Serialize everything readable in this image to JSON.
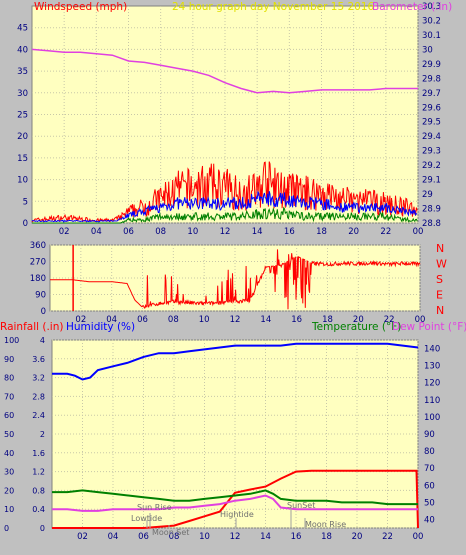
{
  "title": "24 hour graph day   November 15 2016",
  "colors": {
    "plot_bg": "#ffffc0",
    "frame_bg": "#c0c0c0",
    "grid": "#c8c8a8",
    "wind": "#ff0000",
    "gust_avg": "#0000ff",
    "wind_min": "#008000",
    "barometer": "#e040e0",
    "direction": "#ff0000",
    "rain": "#ff0000",
    "humidity": "#0000ff",
    "temperature": "#008000",
    "dewpoint": "#e040e0",
    "title": "#e0e000"
  },
  "x_tick_labels": [
    "02",
    "04",
    "06",
    "08",
    "10",
    "12",
    "14",
    "16",
    "18",
    "20",
    "22",
    "00"
  ],
  "panel1": {
    "left_label": "Windspeed (mph)",
    "right_label": "Barometer (.in)",
    "left_ticks": [
      "0",
      "5",
      "10",
      "15",
      "20",
      "25",
      "30",
      "35",
      "40",
      "45"
    ],
    "right_ticks": [
      "28.8",
      "28.9",
      "29",
      "29.1",
      "29.2",
      "29.3",
      "29.4",
      "29.5",
      "29.6",
      "29.7",
      "29.8",
      "29.9",
      "30",
      "30.1",
      "30.2",
      "30.3"
    ]
  },
  "panel2": {
    "left_ticks": [
      "0",
      "90",
      "180",
      "270",
      "360"
    ],
    "right_letters": [
      "N",
      "W",
      "S",
      "E",
      "N"
    ]
  },
  "panel3": {
    "rain_label": "Rainfall (.in)",
    "humidity_label": "Humidity (%)",
    "temp_label": "Temperature (°F)",
    "dew_label": "Dew Point (°F)",
    "humidity_ticks": [
      "0",
      "10",
      "20",
      "30",
      "40",
      "50",
      "60",
      "70",
      "80",
      "90",
      "100"
    ],
    "rain_ticks": [
      "0",
      "0.4",
      "0.8",
      "1.2",
      "1.6",
      "2",
      "2.4",
      "2.8",
      "3.2",
      "3.6",
      "4"
    ],
    "temp_ticks": [
      "40",
      "50",
      "60",
      "70",
      "80",
      "90",
      "100",
      "110",
      "120",
      "130",
      "140"
    ],
    "annotations": {
      "sunrise": "Sun Rise",
      "lowtide": "Lowtide",
      "moonset": "Moon Set",
      "hightide": "Hightide",
      "sunset": "SunSet",
      "moonrise": "Moon Rise"
    }
  },
  "chart_data": [
    {
      "type": "line",
      "title": "24 hour graph day   November 15 2016",
      "ylabel": "Windspeed (mph)",
      "y2label": "Barometer (.in)",
      "xlim": [
        0,
        24
      ],
      "ylim": [
        0,
        50
      ],
      "y2lim": [
        28.8,
        30.3
      ],
      "series": [
        {
          "name": "Barometer",
          "axis": "right",
          "x": [
            0,
            1,
            2,
            3,
            4,
            5,
            6,
            7,
            8,
            9,
            10,
            11,
            12,
            13,
            14,
            15,
            16,
            17,
            18,
            19,
            20,
            21,
            22,
            23,
            24
          ],
          "y": [
            30.0,
            29.99,
            29.98,
            29.98,
            29.97,
            29.96,
            29.92,
            29.91,
            29.89,
            29.87,
            29.85,
            29.82,
            29.77,
            29.73,
            29.7,
            29.71,
            29.7,
            29.71,
            29.72,
            29.72,
            29.72,
            29.72,
            29.73,
            29.73,
            29.73
          ]
        }
      ],
      "wind_envelope": {
        "x": [
          0,
          2,
          4,
          5,
          5.5,
          6,
          7,
          8,
          9,
          10,
          11,
          12,
          13,
          14,
          14.5,
          15,
          16,
          17,
          18,
          19,
          20,
          21,
          22,
          23,
          24
        ],
        "gust_max": [
          1,
          2,
          1,
          1,
          2,
          4,
          6,
          9,
          12,
          13,
          14,
          13,
          11,
          12,
          16,
          13,
          12,
          11,
          11,
          9,
          8,
          8,
          7,
          6,
          5
        ],
        "avg": [
          0.5,
          0.5,
          0.5,
          0.5,
          1,
          2,
          3,
          4,
          5,
          5,
          5,
          5,
          5,
          6,
          7,
          6,
          6,
          5,
          5,
          4,
          4,
          4,
          4,
          3,
          3
        ],
        "min": [
          0,
          0,
          0,
          0,
          0,
          1,
          1,
          2,
          2,
          2,
          2,
          2,
          2,
          3,
          3,
          3,
          3,
          2,
          2,
          2,
          2,
          2,
          2,
          1,
          1
        ]
      }
    },
    {
      "type": "scatter",
      "ylabel": "Wind direction (deg)",
      "xlim": [
        0,
        24
      ],
      "ylim": [
        0,
        360
      ],
      "series": [
        {
          "name": "Direction",
          "x": [
            0,
            1.5,
            2.5,
            4,
            5,
            5.5,
            6,
            7,
            8,
            9,
            10,
            11,
            12,
            13,
            14,
            15,
            16,
            17,
            18,
            19,
            20,
            21,
            22,
            23,
            24
          ],
          "y": [
            170,
            170,
            160,
            160,
            150,
            60,
            20,
            40,
            50,
            45,
            40,
            45,
            50,
            60,
            240,
            250,
            300,
            260,
            255,
            260,
            258,
            262,
            255,
            260,
            255
          ]
        }
      ]
    },
    {
      "type": "line",
      "xlim": [
        0,
        24
      ],
      "ylim": [
        0,
        100
      ],
      "series": [
        {
          "name": "Humidity (%)",
          "axis": "humidity",
          "x": [
            0,
            1,
            1.5,
            2,
            2.5,
            3,
            4,
            5,
            6,
            7,
            8,
            9,
            10,
            11,
            12,
            13,
            14,
            15,
            16,
            17,
            18,
            19,
            20,
            21,
            22,
            23,
            24
          ],
          "y": [
            82,
            82,
            81,
            79,
            80,
            84,
            86,
            88,
            91,
            93,
            93,
            94,
            95,
            96,
            97,
            97,
            97,
            97,
            98,
            98,
            98,
            98,
            98,
            98,
            98,
            97,
            96
          ]
        },
        {
          "name": "Rainfall (.in)",
          "axis": "rain",
          "x": [
            0,
            6,
            8,
            9,
            10,
            11,
            12,
            13,
            14,
            15,
            16,
            17,
            18,
            19,
            20,
            21,
            22,
            23,
            23.9,
            24
          ],
          "y": [
            0,
            0,
            0.05,
            0.15,
            0.25,
            0.35,
            0.75,
            0.82,
            0.88,
            1.05,
            1.2,
            1.22,
            1.22,
            1.22,
            1.22,
            1.22,
            1.22,
            1.22,
            1.22,
            0
          ]
        },
        {
          "name": "Temperature (°F)",
          "axis": "temp",
          "x": [
            0,
            1,
            2,
            3,
            4,
            5,
            6,
            7,
            8,
            9,
            10,
            11,
            12,
            13,
            14,
            14.5,
            15,
            16,
            17,
            18,
            19,
            20,
            21,
            22,
            23,
            24
          ],
          "y": [
            56,
            56,
            57,
            56,
            55,
            54,
            53,
            52,
            51,
            51,
            52,
            53,
            54,
            55,
            57,
            55,
            52,
            51,
            51,
            51,
            50,
            50,
            50,
            49,
            49,
            49
          ]
        },
        {
          "name": "Dew Point (°F)",
          "axis": "temp",
          "x": [
            0,
            1,
            2,
            3,
            4,
            5,
            6,
            7,
            8,
            9,
            10,
            11,
            12,
            13,
            14,
            14.5,
            15,
            16,
            17,
            18,
            19,
            20,
            21,
            22,
            23,
            24
          ],
          "y": [
            46,
            46,
            45,
            45,
            46,
            46,
            46,
            46,
            47,
            47,
            48,
            49,
            51,
            52,
            54,
            52,
            47,
            46,
            46,
            46,
            46,
            46,
            46,
            46,
            46,
            46
          ]
        }
      ]
    }
  ]
}
